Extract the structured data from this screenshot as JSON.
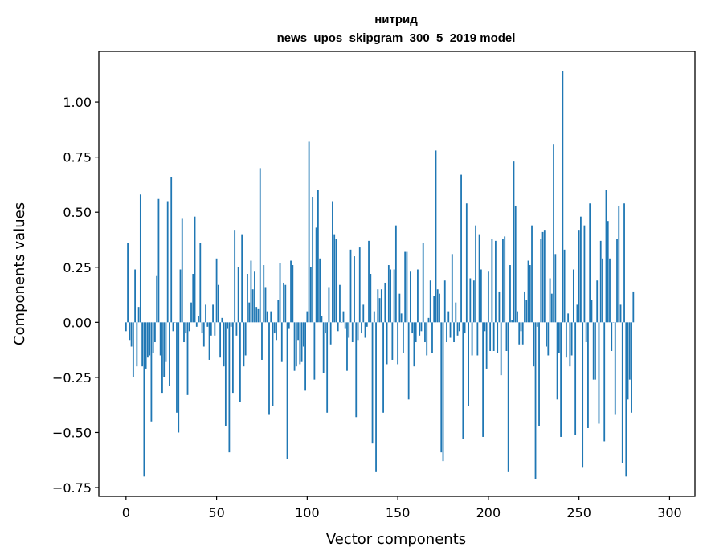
{
  "chart_data": {
    "type": "bar",
    "title": "нитрид",
    "subtitle": "news_upos_skipgram_300_5_2019 model",
    "xlabel": "Vector components",
    "ylabel": "Components values",
    "xlim": [
      -15,
      314
    ],
    "ylim": [
      -0.79,
      1.23
    ],
    "xticks": [
      0,
      50,
      100,
      150,
      200,
      250,
      300
    ],
    "yticks": [
      -0.75,
      -0.5,
      -0.25,
      0.0,
      0.25,
      0.5,
      0.75,
      1.0
    ],
    "ytick_labels": [
      "−0.75",
      "−0.50",
      "−0.25",
      "0.00",
      "0.25",
      "0.50",
      "0.75",
      "1.00"
    ],
    "grid": false,
    "bar_color": "#1f77b4",
    "values": [
      -0.04,
      0.36,
      -0.08,
      -0.11,
      -0.25,
      0.24,
      -0.2,
      0.07,
      0.58,
      -0.2,
      -0.7,
      -0.21,
      -0.16,
      -0.15,
      -0.45,
      -0.14,
      -0.09,
      0.21,
      0.56,
      -0.15,
      -0.32,
      -0.25,
      -0.18,
      0.55,
      -0.29,
      0.66,
      -0.04,
      0.0,
      -0.41,
      -0.5,
      0.24,
      0.47,
      -0.09,
      -0.05,
      -0.33,
      -0.04,
      0.09,
      0.22,
      0.48,
      -0.02,
      0.03,
      0.36,
      -0.05,
      -0.11,
      0.08,
      -0.02,
      -0.17,
      -0.06,
      0.08,
      -0.06,
      0.29,
      0.17,
      -0.16,
      0.02,
      -0.2,
      -0.47,
      -0.03,
      -0.59,
      -0.02,
      -0.32,
      0.42,
      -0.06,
      0.25,
      -0.36,
      0.4,
      -0.2,
      -0.15,
      0.22,
      0.09,
      0.28,
      0.15,
      0.23,
      0.07,
      0.06,
      0.7,
      -0.17,
      0.26,
      0.16,
      0.05,
      -0.42,
      0.05,
      -0.38,
      -0.05,
      -0.08,
      0.1,
      0.27,
      -0.18,
      0.18,
      0.17,
      -0.62,
      -0.03,
      0.28,
      0.26,
      -0.22,
      -0.2,
      -0.08,
      -0.19,
      -0.18,
      -0.11,
      -0.31,
      0.05,
      0.82,
      0.25,
      0.57,
      -0.26,
      0.43,
      0.6,
      0.29,
      0.03,
      -0.23,
      -0.05,
      -0.41,
      0.16,
      -0.1,
      0.55,
      0.4,
      0.38,
      -0.04,
      0.17,
      0.0,
      0.05,
      -0.03,
      -0.22,
      -0.07,
      0.33,
      -0.09,
      0.3,
      -0.43,
      -0.08,
      0.34,
      -0.05,
      0.08,
      -0.07,
      -0.02,
      0.37,
      0.22,
      -0.55,
      0.05,
      -0.68,
      0.15,
      0.11,
      0.15,
      -0.41,
      0.18,
      -0.19,
      0.26,
      0.24,
      -0.17,
      0.24,
      0.44,
      -0.19,
      0.13,
      0.04,
      -0.14,
      0.32,
      0.32,
      -0.35,
      0.23,
      -0.05,
      -0.2,
      -0.09,
      0.24,
      -0.06,
      -0.04,
      0.36,
      -0.09,
      -0.15,
      0.02,
      0.19,
      -0.14,
      0.12,
      0.78,
      0.15,
      0.13,
      -0.59,
      -0.63,
      0.19,
      -0.09,
      0.05,
      -0.07,
      0.31,
      -0.09,
      0.09,
      -0.06,
      -0.04,
      0.67,
      -0.53,
      -0.05,
      0.54,
      -0.38,
      0.2,
      -0.15,
      0.19,
      0.44,
      -0.15,
      0.4,
      0.24,
      -0.52,
      -0.04,
      -0.21,
      0.23,
      -0.13,
      0.38,
      -0.13,
      0.37,
      -0.14,
      0.14,
      -0.24,
      0.38,
      0.39,
      -0.13,
      -0.68,
      0.26,
      0.01,
      0.73,
      0.53,
      0.05,
      -0.1,
      -0.04,
      -0.1,
      0.14,
      0.1,
      0.28,
      0.26,
      0.44,
      -0.2,
      -0.71,
      -0.02,
      -0.47,
      0.38,
      0.41,
      0.42,
      -0.11,
      -0.15,
      0.2,
      0.13,
      0.81,
      0.31,
      -0.35,
      -0.14,
      -0.52,
      1.14,
      0.33,
      -0.16,
      0.04,
      -0.2,
      -0.15,
      0.24,
      -0.51,
      0.08,
      0.42,
      0.48,
      -0.66,
      0.44,
      -0.09,
      -0.48,
      0.54,
      0.1,
      -0.26,
      -0.26,
      0.19,
      -0.46,
      0.37,
      0.29,
      -0.54,
      0.6,
      0.46,
      0.29,
      -0.13,
      0.0,
      -0.42,
      0.38,
      0.53,
      0.08,
      -0.64,
      0.54,
      -0.7,
      -0.35,
      -0.26,
      -0.41,
      0.14
    ]
  }
}
